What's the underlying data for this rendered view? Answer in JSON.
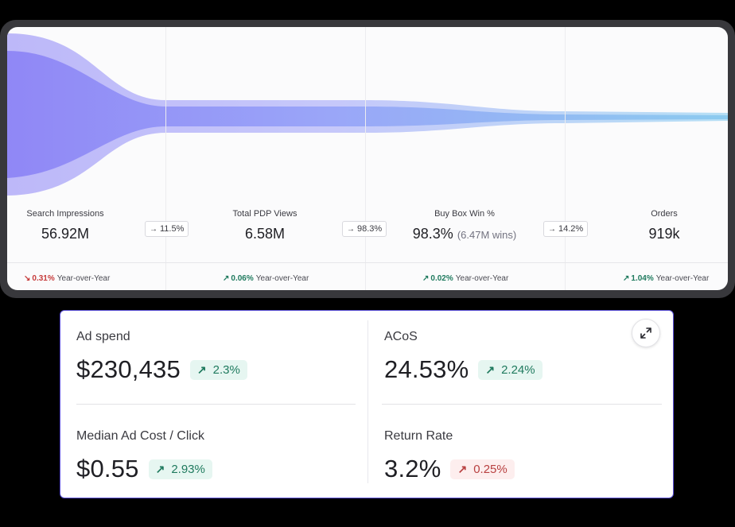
{
  "funnel": {
    "stages": [
      {
        "label": "Search Impressions",
        "value": "56.92M",
        "sub": "",
        "yoy_dir": "down",
        "yoy_pct": "0.31%",
        "yoy_label": "Year-over-Year"
      },
      {
        "label": "Total PDP Views",
        "value": "6.58M",
        "sub": "",
        "yoy_dir": "up",
        "yoy_pct": "0.06%",
        "yoy_label": "Year-over-Year"
      },
      {
        "label": "Buy Box Win %",
        "value": "98.3%",
        "sub": "(6.47M wins)",
        "yoy_dir": "up",
        "yoy_pct": "0.02%",
        "yoy_label": "Year-over-Year"
      },
      {
        "label": "Orders",
        "value": "919k",
        "sub": "",
        "yoy_dir": "up",
        "yoy_pct": "1.04%",
        "yoy_label": "Year-over-Year"
      }
    ],
    "conversion_rates": [
      "11.5%",
      "98.3%",
      "14.2%"
    ],
    "arrow_right": "→",
    "arrow_up": "↗",
    "arrow_down": "↘",
    "colors": {
      "outer_band": "#c4c1fa",
      "inner_band": "#8f86f6",
      "tail": "#a8d8f2"
    }
  },
  "metrics": [
    {
      "label": "Ad spend",
      "value": "$230,435",
      "change": "2.3%",
      "direction": "up"
    },
    {
      "label": "ACoS",
      "value": "24.53%",
      "change": "2.24%",
      "direction": "up"
    },
    {
      "label": "Median Ad Cost / Click",
      "value": "$0.55",
      "change": "2.93%",
      "direction": "up"
    },
    {
      "label": "Return Rate",
      "value": "3.2%",
      "change": "0.25%",
      "direction": "down"
    }
  ],
  "icons": {
    "expand": "expand-icon"
  }
}
